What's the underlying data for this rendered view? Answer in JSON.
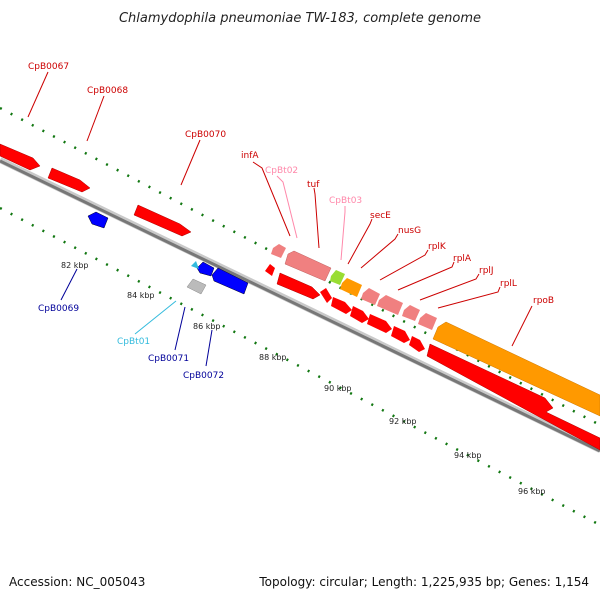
{
  "title": "Chlamydophila pneumoniae TW-183, complete genome",
  "footer": {
    "accession": "Accession: NC_005043",
    "summary": "Topology: circular; Length: 1,225,935 bp; Genes: 1,154"
  },
  "colors": {
    "cds_forward": "#ff0000",
    "cds_reverse": "#0000ff",
    "rna_pink": "#f08080",
    "orange_block": "#ff9900",
    "green_block": "#99dd33",
    "grey_block": "#bbbbbb",
    "label_red": "#cc0000",
    "label_pink": "#ff88aa",
    "label_blue": "#000099",
    "label_cyan": "#33bbdd",
    "tick_green": "#117711",
    "backbone": "#777777"
  },
  "tick_labels": [
    "82 kbp",
    "84 kbp",
    "86 kbp",
    "88 kbp",
    "90 kbp",
    "92 kbp",
    "94 kbp",
    "96 kbp"
  ],
  "gene_labels": [
    {
      "id": "cpb0067",
      "text": "CpB0067",
      "color": "label_red"
    },
    {
      "id": "cpb0068",
      "text": "CpB0068",
      "color": "label_red"
    },
    {
      "id": "cpb0070",
      "text": "CpB0070",
      "color": "label_red"
    },
    {
      "id": "infa",
      "text": "infA",
      "color": "label_red"
    },
    {
      "id": "cpbt02",
      "text": "CpBt02",
      "color": "label_pink"
    },
    {
      "id": "tuf",
      "text": "tuf",
      "color": "label_red"
    },
    {
      "id": "cpbt03",
      "text": "CpBt03",
      "color": "label_pink"
    },
    {
      "id": "sece",
      "text": "secE",
      "color": "label_red"
    },
    {
      "id": "nusg",
      "text": "nusG",
      "color": "label_red"
    },
    {
      "id": "rplk",
      "text": "rplK",
      "color": "label_red"
    },
    {
      "id": "rpla",
      "text": "rplA",
      "color": "label_red"
    },
    {
      "id": "rplj",
      "text": "rplJ",
      "color": "label_red"
    },
    {
      "id": "rpll",
      "text": "rplL",
      "color": "label_red"
    },
    {
      "id": "rpob",
      "text": "rpoB",
      "color": "label_red"
    },
    {
      "id": "cpb0069",
      "text": "CpB0069",
      "color": "label_blue"
    },
    {
      "id": "cpbt01",
      "text": "CpBt01",
      "color": "label_cyan"
    },
    {
      "id": "cpb0071",
      "text": "CpB0071",
      "color": "label_blue"
    },
    {
      "id": "cpb0072",
      "text": "CpB0072",
      "color": "label_blue"
    }
  ]
}
